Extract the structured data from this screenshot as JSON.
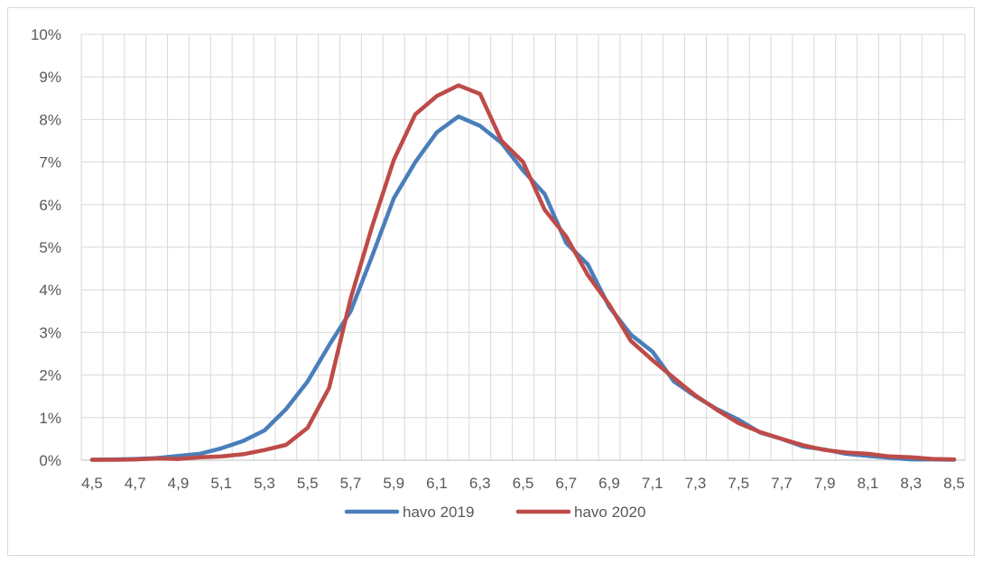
{
  "chart_data": {
    "type": "line",
    "x": [
      "4,5",
      "4,6",
      "4,7",
      "4,8",
      "4,9",
      "5,0",
      "5,1",
      "5,2",
      "5,3",
      "5,4",
      "5,5",
      "5,6",
      "5,7",
      "5,8",
      "5,9",
      "6,0",
      "6,1",
      "6,2",
      "6,3",
      "6,4",
      "6,5",
      "6,6",
      "6,7",
      "6,8",
      "6,9",
      "7,0",
      "7,1",
      "7,2",
      "7,3",
      "7,4",
      "7,5",
      "7,6",
      "7,7",
      "7,8",
      "7,9",
      "8,0",
      "8,1",
      "8,2",
      "8,3",
      "8,4",
      "8,5"
    ],
    "xtick_labels": [
      "4,5",
      "4,7",
      "4,9",
      "5,1",
      "5,3",
      "5,5",
      "5,7",
      "5,9",
      "6,1",
      "6,3",
      "6,5",
      "6,7",
      "6,9",
      "7,1",
      "7,3",
      "7,5",
      "7,7",
      "7,9",
      "8,1",
      "8,3",
      "8,5"
    ],
    "ytick_labels": [
      "0%",
      "1%",
      "2%",
      "3%",
      "4%",
      "5%",
      "6%",
      "7%",
      "8%",
      "9%",
      "10%"
    ],
    "ylim": [
      0,
      10
    ],
    "grid": true,
    "legend_position": "bottom",
    "series": [
      {
        "name": "havo 2019",
        "color": "#4a7ebb",
        "values": [
          0.01,
          0.02,
          0.03,
          0.05,
          0.1,
          0.15,
          0.28,
          0.45,
          0.7,
          1.2,
          1.85,
          2.7,
          3.5,
          4.8,
          6.15,
          7.0,
          7.7,
          8.07,
          7.85,
          7.45,
          6.8,
          6.25,
          5.1,
          4.6,
          3.6,
          2.95,
          2.55,
          1.85,
          1.5,
          1.2,
          0.95,
          0.65,
          0.5,
          0.32,
          0.25,
          0.15,
          0.1,
          0.06,
          0.02,
          0.02,
          0.01
        ]
      },
      {
        "name": "havo 2020",
        "color": "#be4b48",
        "values": [
          0.01,
          0.01,
          0.02,
          0.04,
          0.03,
          0.07,
          0.09,
          0.14,
          0.24,
          0.36,
          0.76,
          1.7,
          3.8,
          5.5,
          7.05,
          8.12,
          8.55,
          8.8,
          8.6,
          7.5,
          7.0,
          5.88,
          5.25,
          4.35,
          3.65,
          2.8,
          2.35,
          1.93,
          1.52,
          1.18,
          0.87,
          0.66,
          0.5,
          0.35,
          0.24,
          0.18,
          0.15,
          0.09,
          0.07,
          0.03,
          0.02
        ]
      }
    ]
  }
}
